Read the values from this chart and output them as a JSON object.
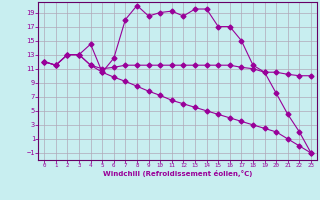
{
  "bg_color": "#c8eef0",
  "line_color": "#990099",
  "grid_color": "#b0a8b8",
  "axis_color": "#660066",
  "xlabel": "Windchill (Refroidissement éolien,°C)",
  "xlim": [
    -0.5,
    23.5
  ],
  "ylim": [
    -2.0,
    20.5
  ],
  "xticks": [
    0,
    1,
    2,
    3,
    4,
    5,
    6,
    7,
    8,
    9,
    10,
    11,
    12,
    13,
    14,
    15,
    16,
    17,
    18,
    19,
    20,
    21,
    22,
    23
  ],
  "yticks": [
    -1,
    1,
    3,
    5,
    7,
    9,
    11,
    13,
    15,
    17,
    19
  ],
  "curve1_x": [
    0,
    1,
    2,
    3,
    4,
    5,
    6,
    7,
    8,
    9,
    10,
    11,
    12,
    13,
    14,
    15,
    16,
    17,
    18,
    19,
    20,
    21,
    22,
    23
  ],
  "curve1_y": [
    12.0,
    11.5,
    13.0,
    13.0,
    14.5,
    10.5,
    12.5,
    18.0,
    20.0,
    18.5,
    19.0,
    19.2,
    18.5,
    19.5,
    19.5,
    17.0,
    17.0,
    15.0,
    11.5,
    10.5,
    7.5,
    4.5,
    2.0,
    -1.0
  ],
  "curve2_x": [
    0,
    1,
    2,
    3,
    4,
    5,
    6,
    7,
    8,
    9,
    10,
    11,
    12,
    13,
    14,
    15,
    16,
    17,
    18,
    19,
    20,
    21,
    22,
    23
  ],
  "curve2_y": [
    12.0,
    11.5,
    13.0,
    13.0,
    11.5,
    11.0,
    11.2,
    11.5,
    11.5,
    11.5,
    11.5,
    11.5,
    11.5,
    11.5,
    11.5,
    11.5,
    11.5,
    11.2,
    11.0,
    10.5,
    10.5,
    10.2,
    10.0,
    10.0
  ],
  "curve3_x": [
    0,
    1,
    2,
    3,
    4,
    5,
    6,
    7,
    8,
    9,
    10,
    11,
    12,
    13,
    14,
    15,
    16,
    17,
    18,
    19,
    20,
    21,
    22,
    23
  ],
  "curve3_y": [
    12.0,
    11.5,
    13.0,
    13.0,
    11.5,
    10.5,
    9.8,
    9.2,
    8.5,
    7.8,
    7.2,
    6.5,
    6.0,
    5.5,
    5.0,
    4.5,
    4.0,
    3.5,
    3.0,
    2.5,
    2.0,
    1.0,
    0.0,
    -1.0
  ]
}
